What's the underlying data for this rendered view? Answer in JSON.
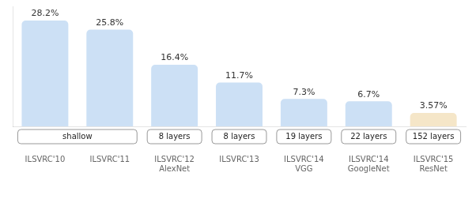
{
  "chart_data": {
    "type": "bar",
    "categories": [
      "ILSVRC'10",
      "ILSVRC'11",
      "ILSVRC'12\nAlexNet",
      "ILSVRC'13",
      "ILSVRC'14\nVGG",
      "ILSVRC'14\nGoogleNet",
      "ILSVRC'15\nResNet"
    ],
    "values": [
      28.2,
      25.8,
      16.4,
      11.7,
      7.3,
      6.7,
      3.57
    ],
    "value_labels": [
      "28.2%",
      "25.8%",
      "16.4%",
      "11.7%",
      "7.3%",
      "6.7%",
      "3.57%"
    ],
    "data_labels": true,
    "colors": [
      "#cce0f5",
      "#cce0f5",
      "#cce0f5",
      "#cce0f5",
      "#cce0f5",
      "#cce0f5",
      "#f5e6c8"
    ],
    "annotations": [
      {
        "text": "shallow",
        "categories": [
          "ILSVRC'10",
          "ILSVRC'11"
        ]
      },
      {
        "text": "8 layers",
        "categories": [
          "ILSVRC'12\nAlexNet"
        ]
      },
      {
        "text": "8 layers",
        "categories": [
          "ILSVRC'13"
        ]
      },
      {
        "text": "19 layers",
        "categories": [
          "ILSVRC'14\nVGG"
        ]
      },
      {
        "text": "22 layers",
        "categories": [
          "ILSVRC'14\nGoogleNet"
        ]
      },
      {
        "text": "152 layers",
        "categories": [
          "ILSVRC'15\nResNet"
        ]
      }
    ],
    "ylim": [
      0,
      32
    ],
    "grid": false,
    "tick_labels": "x"
  }
}
